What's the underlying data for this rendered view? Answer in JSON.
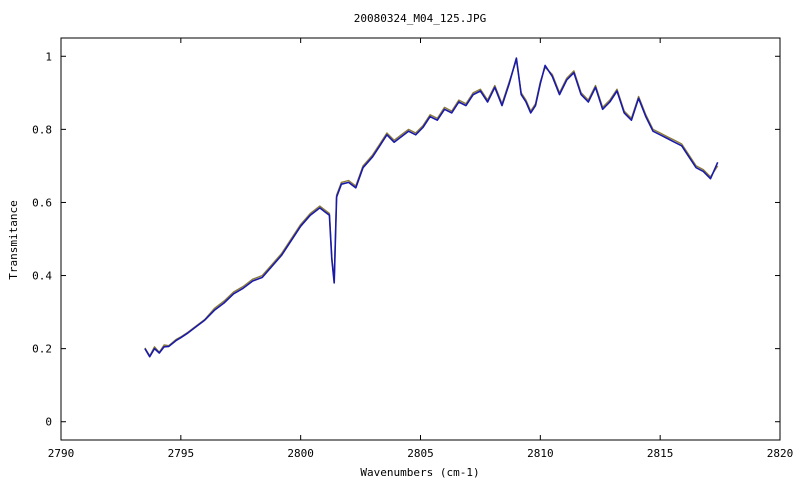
{
  "chart_data": {
    "type": "line",
    "title": "20080324_M04_125.JPG",
    "xlabel": "Wavenumbers (cm-1)",
    "ylabel": "Transmitance",
    "xlim": [
      2790,
      2820
    ],
    "ylim": [
      -0.05,
      1.05
    ],
    "x_ticks": [
      2790,
      2795,
      2800,
      2805,
      2810,
      2815,
      2820
    ],
    "x_tick_labels": [
      "2790",
      "2795",
      "2800",
      "2805",
      "2810",
      "2815",
      "2820"
    ],
    "y_ticks": [
      0,
      0.2,
      0.4,
      0.6,
      0.8,
      1
    ],
    "y_tick_labels": [
      "0",
      "0.2",
      "0.4",
      "0.6",
      "0.8",
      "1"
    ],
    "grid": false,
    "legend": "none",
    "series": [
      {
        "color": "#8a7a3a",
        "x": [
          2793.5,
          2793.7,
          2793.9,
          2794.1,
          2794.3,
          2794.5,
          2794.8,
          2795.0,
          2795.3,
          2795.6,
          2796.0,
          2796.4,
          2796.8,
          2797.2,
          2797.6,
          2798.0,
          2798.4,
          2798.8,
          2799.2,
          2799.6,
          2800.0,
          2800.4,
          2800.8,
          2801.0,
          2801.2,
          2801.3,
          2801.4,
          2801.5,
          2801.7,
          2802.0,
          2802.3,
          2802.6,
          2803.0,
          2803.3,
          2803.6,
          2803.9,
          2804.2,
          2804.5,
          2804.8,
          2805.1,
          2805.4,
          2805.7,
          2806.0,
          2806.3,
          2806.6,
          2806.9,
          2807.2,
          2807.5,
          2807.8,
          2808.1,
          2808.4,
          2808.7,
          2809.0,
          2809.2,
          2809.4,
          2809.6,
          2809.8,
          2810.0,
          2810.2,
          2810.5,
          2810.8,
          2811.1,
          2811.4,
          2811.7,
          2812.0,
          2812.3,
          2812.6,
          2812.9,
          2813.2,
          2813.5,
          2813.8,
          2814.1,
          2814.4,
          2814.7,
          2815.0,
          2815.3,
          2815.6,
          2815.9,
          2816.2,
          2816.5,
          2816.8,
          2817.1,
          2817.4
        ],
        "values": [
          0.202,
          0.18,
          0.205,
          0.19,
          0.21,
          0.208,
          0.225,
          0.232,
          0.245,
          0.26,
          0.28,
          0.31,
          0.33,
          0.355,
          0.37,
          0.39,
          0.4,
          0.43,
          0.46,
          0.5,
          0.54,
          0.57,
          0.59,
          0.58,
          0.57,
          0.45,
          0.385,
          0.62,
          0.655,
          0.66,
          0.645,
          0.7,
          0.73,
          0.76,
          0.79,
          0.77,
          0.785,
          0.8,
          0.79,
          0.81,
          0.84,
          0.83,
          0.86,
          0.85,
          0.88,
          0.87,
          0.9,
          0.91,
          0.88,
          0.92,
          0.87,
          0.93,
          0.99,
          0.9,
          0.88,
          0.85,
          0.87,
          0.93,
          0.97,
          0.95,
          0.9,
          0.94,
          0.96,
          0.9,
          0.88,
          0.92,
          0.86,
          0.88,
          0.91,
          0.85,
          0.83,
          0.89,
          0.84,
          0.8,
          0.79,
          0.78,
          0.77,
          0.76,
          0.73,
          0.7,
          0.69,
          0.67,
          0.7
        ]
      },
      {
        "color": "#1a1aaa",
        "x": [
          2793.5,
          2793.7,
          2793.9,
          2794.1,
          2794.3,
          2794.5,
          2794.8,
          2795.0,
          2795.3,
          2795.6,
          2796.0,
          2796.4,
          2796.8,
          2797.2,
          2797.6,
          2798.0,
          2798.4,
          2798.8,
          2799.2,
          2799.6,
          2800.0,
          2800.4,
          2800.8,
          2801.0,
          2801.2,
          2801.3,
          2801.4,
          2801.5,
          2801.7,
          2802.0,
          2802.3,
          2802.6,
          2803.0,
          2803.3,
          2803.6,
          2803.9,
          2804.2,
          2804.5,
          2804.8,
          2805.1,
          2805.4,
          2805.7,
          2806.0,
          2806.3,
          2806.6,
          2806.9,
          2807.2,
          2807.5,
          2807.8,
          2808.1,
          2808.4,
          2808.7,
          2809.0,
          2809.2,
          2809.4,
          2809.6,
          2809.8,
          2810.0,
          2810.2,
          2810.5,
          2810.8,
          2811.1,
          2811.4,
          2811.7,
          2812.0,
          2812.3,
          2812.6,
          2812.9,
          2813.2,
          2813.5,
          2813.8,
          2814.1,
          2814.4,
          2814.7,
          2815.0,
          2815.3,
          2815.6,
          2815.9,
          2816.2,
          2816.5,
          2816.8,
          2817.1,
          2817.4
        ],
        "values": [
          0.2,
          0.178,
          0.2,
          0.188,
          0.205,
          0.206,
          0.222,
          0.23,
          0.243,
          0.258,
          0.278,
          0.305,
          0.325,
          0.35,
          0.365,
          0.385,
          0.395,
          0.425,
          0.455,
          0.495,
          0.535,
          0.565,
          0.585,
          0.575,
          0.565,
          0.445,
          0.38,
          0.615,
          0.65,
          0.655,
          0.64,
          0.695,
          0.725,
          0.755,
          0.785,
          0.765,
          0.78,
          0.795,
          0.785,
          0.805,
          0.835,
          0.825,
          0.855,
          0.845,
          0.875,
          0.865,
          0.895,
          0.905,
          0.875,
          0.915,
          0.865,
          0.925,
          0.995,
          0.895,
          0.875,
          0.845,
          0.865,
          0.925,
          0.975,
          0.945,
          0.895,
          0.935,
          0.955,
          0.895,
          0.875,
          0.915,
          0.855,
          0.875,
          0.905,
          0.845,
          0.825,
          0.885,
          0.835,
          0.795,
          0.785,
          0.775,
          0.765,
          0.755,
          0.725,
          0.695,
          0.685,
          0.665,
          0.71
        ]
      }
    ]
  }
}
